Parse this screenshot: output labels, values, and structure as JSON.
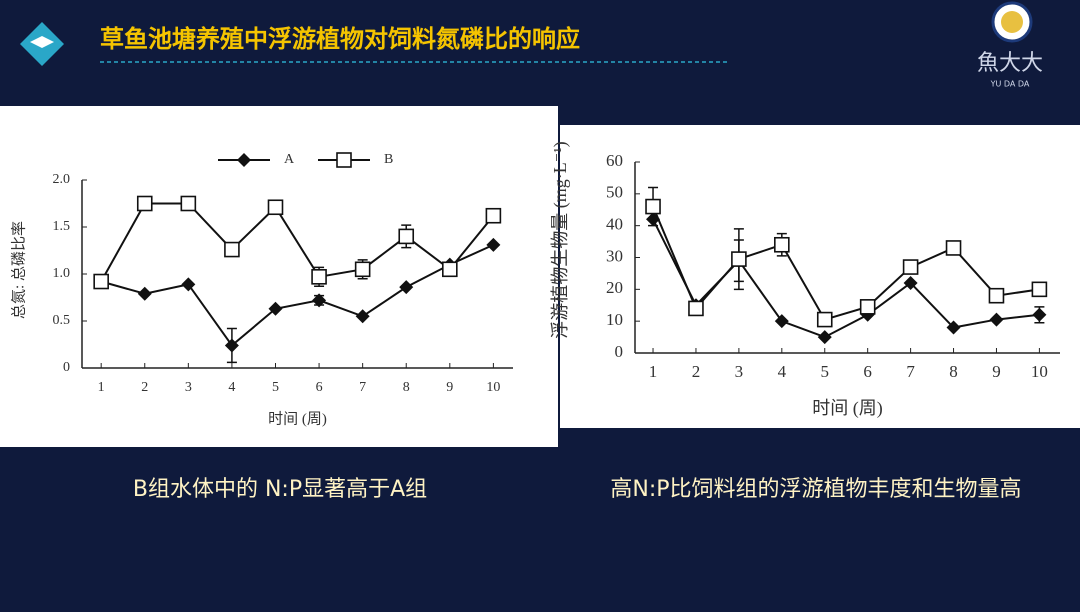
{
  "header": {
    "title": "草鱼池塘养殖中浮游植物对饲料氮磷比的响应"
  },
  "logo": {
    "text": "魚大大",
    "subtext": "YU DA DA"
  },
  "chart_data": [
    {
      "type": "line",
      "xlabel": "时间 (周)",
      "ylabel": "总氮: 总磷比率",
      "x": [
        1,
        2,
        3,
        4,
        5,
        6,
        7,
        8,
        9,
        10
      ],
      "xlim": [
        0.56,
        10.45
      ],
      "xticks": [
        1,
        2,
        3,
        4,
        5,
        6,
        7,
        8,
        9,
        10
      ],
      "ylim": [
        0,
        2.0
      ],
      "yticks": [
        0,
        0.5,
        {
          "value": 1.0,
          "label": "1.0"
        },
        1.5,
        {
          "value": 2.0,
          "label": "2.0"
        }
      ],
      "legend": "top",
      "series": [
        {
          "name": "A",
          "color": "#111111",
          "marker": "diamond",
          "values": [
            0.92,
            0.79,
            0.89,
            0.24,
            0.63,
            0.72,
            0.55,
            0.86,
            1.1,
            1.31
          ],
          "errors": [
            null,
            null,
            null,
            0.18,
            null,
            0.05,
            null,
            null,
            null,
            null
          ]
        },
        {
          "name": "B",
          "color": "#111111",
          "marker": "square",
          "values": [
            0.92,
            1.75,
            1.75,
            1.26,
            1.71,
            0.97,
            1.05,
            1.4,
            1.05,
            1.62
          ],
          "errors": [
            null,
            0.06,
            null,
            null,
            null,
            0.1,
            0.1,
            0.12,
            null,
            null
          ]
        }
      ]
    },
    {
      "type": "line",
      "xlabel": "时间 (周)",
      "ylabel": "浮游植物生物量 (mg·L⁻¹)",
      "x": [
        1,
        2,
        3,
        4,
        5,
        6,
        7,
        8,
        9,
        10
      ],
      "xlim": [
        0.58,
        10.48
      ],
      "xticks": [
        1,
        2,
        3,
        4,
        5,
        6,
        7,
        8,
        9,
        10
      ],
      "ylim": [
        0,
        60
      ],
      "yticks": [
        0,
        10,
        20,
        30,
        40,
        50,
        60
      ],
      "series": [
        {
          "color": "#111111",
          "marker": "diamond",
          "values": [
            42,
            15,
            29,
            10,
            5,
            12,
            22,
            8,
            10.5,
            12
          ],
          "errors": [
            null,
            null,
            6.5,
            null,
            null,
            null,
            null,
            null,
            null,
            2.5
          ]
        },
        {
          "color": "#111111",
          "marker": "square",
          "values": [
            46,
            14,
            29.5,
            34,
            10.5,
            14.5,
            27,
            33,
            18,
            20
          ],
          "errors": [
            6,
            null,
            9.5,
            3.5,
            null,
            null,
            null,
            null,
            null,
            null
          ]
        }
      ]
    }
  ],
  "captions": [
    "B组水体中的 N:P显著高于A组",
    "高N:P比饲料组的浮游植物丰度和生物量高"
  ]
}
